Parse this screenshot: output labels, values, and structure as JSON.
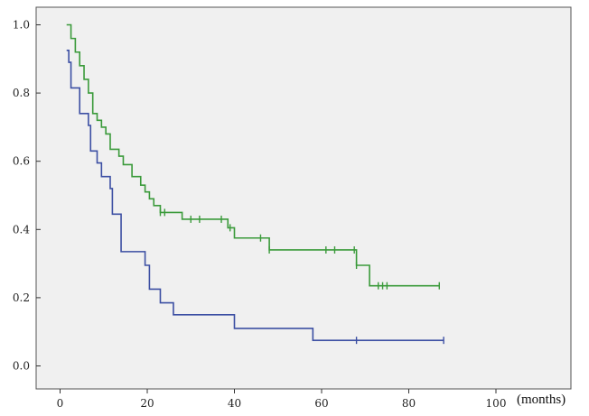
{
  "chart_data": {
    "type": "line",
    "step": true,
    "title": "",
    "xlabel": "(months)",
    "ylabel": "",
    "xlim": [
      0,
      100
    ],
    "ylim": [
      0,
      1.0
    ],
    "x_ticks": [
      "0",
      "20",
      "40",
      "60",
      "80",
      "100"
    ],
    "y_ticks": [
      "0.0",
      "0.2",
      "0.4",
      "0.6",
      "0.8",
      "1.0"
    ],
    "grid": false,
    "legend": "none",
    "plot_background": "#f0f0f0",
    "series": [
      {
        "color": "#3a9a3a",
        "points": [
          [
            1.5,
            1.0
          ],
          [
            2.5,
            0.96
          ],
          [
            3.5,
            0.92
          ],
          [
            4.5,
            0.88
          ],
          [
            5.5,
            0.84
          ],
          [
            6.5,
            0.8
          ],
          [
            7.5,
            0.74
          ],
          [
            8.5,
            0.72
          ],
          [
            9.5,
            0.7
          ],
          [
            10.5,
            0.68
          ],
          [
            11.5,
            0.635
          ],
          [
            13.5,
            0.615
          ],
          [
            14.5,
            0.59
          ],
          [
            16.5,
            0.555
          ],
          [
            18.5,
            0.53
          ],
          [
            19.5,
            0.51
          ],
          [
            20.5,
            0.49
          ],
          [
            21.5,
            0.47
          ],
          [
            23,
            0.45
          ],
          [
            28,
            0.43
          ],
          [
            38.5,
            0.405
          ],
          [
            40,
            0.375
          ],
          [
            48,
            0.34
          ],
          [
            68,
            0.295
          ],
          [
            71,
            0.235
          ],
          [
            87,
            0.235
          ]
        ],
        "censored": [
          [
            23,
            0.45
          ],
          [
            24,
            0.45
          ],
          [
            30,
            0.43
          ],
          [
            32,
            0.43
          ],
          [
            37,
            0.43
          ],
          [
            39,
            0.405
          ],
          [
            46,
            0.375
          ],
          [
            48,
            0.34
          ],
          [
            61,
            0.34
          ],
          [
            63,
            0.34
          ],
          [
            67.5,
            0.34
          ],
          [
            68,
            0.295
          ],
          [
            73,
            0.235
          ],
          [
            74,
            0.235
          ],
          [
            75,
            0.235
          ],
          [
            87,
            0.235
          ]
        ]
      },
      {
        "color": "#3c4fa3",
        "points": [
          [
            1.5,
            0.925
          ],
          [
            2,
            0.89
          ],
          [
            2.5,
            0.815
          ],
          [
            4.5,
            0.74
          ],
          [
            6.5,
            0.705
          ],
          [
            7,
            0.63
          ],
          [
            8.5,
            0.595
          ],
          [
            9.5,
            0.555
          ],
          [
            11.5,
            0.52
          ],
          [
            12,
            0.445
          ],
          [
            14,
            0.335
          ],
          [
            19.5,
            0.295
          ],
          [
            20.5,
            0.225
          ],
          [
            23,
            0.185
          ],
          [
            26,
            0.15
          ],
          [
            40,
            0.11
          ],
          [
            58,
            0.075
          ],
          [
            88,
            0.075
          ]
        ],
        "censored": [
          [
            68,
            0.075
          ],
          [
            88,
            0.075
          ]
        ]
      }
    ]
  }
}
